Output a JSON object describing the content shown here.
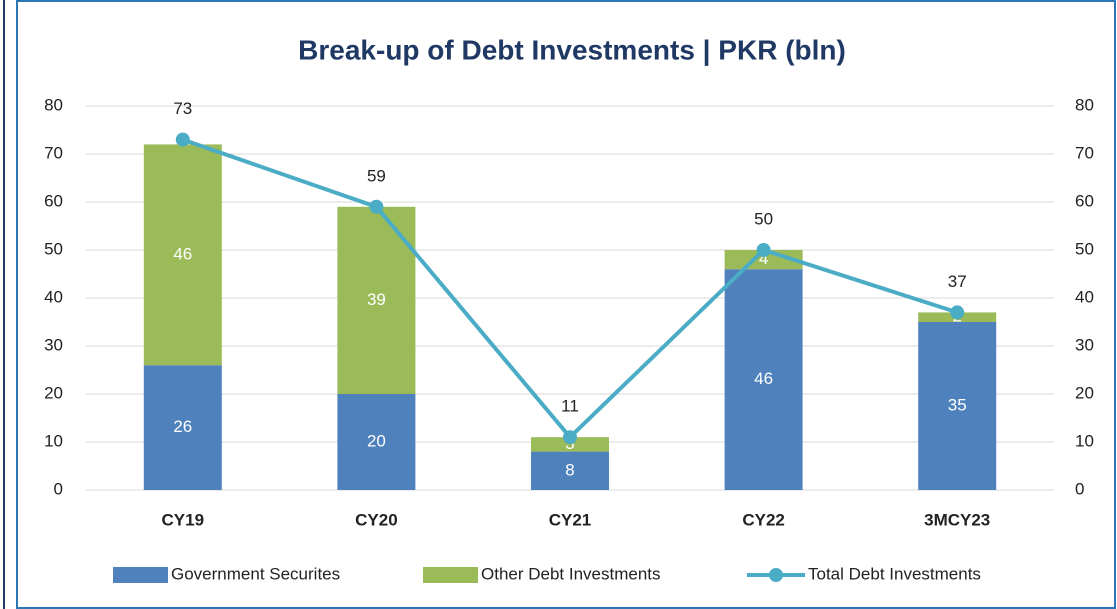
{
  "chart_data": {
    "type": "bar_line",
    "title": "Break-up of Debt Investments | PKR (bln)",
    "categories": [
      "CY19",
      "CY20",
      "CY21",
      "CY22",
      "3MCY23"
    ],
    "series": [
      {
        "name": "Government Securites",
        "type": "bar",
        "color": "#4f81bd",
        "values": [
          26,
          20,
          8,
          46,
          35
        ]
      },
      {
        "name": "Other Debt Investments",
        "type": "bar",
        "color": "#9bbb59",
        "values": [
          46,
          39,
          3,
          4,
          2
        ]
      },
      {
        "name": "Total Debt Investments",
        "type": "line",
        "axis": "y2",
        "color": "#4bacc6",
        "values": [
          73,
          59,
          11,
          50,
          37
        ]
      }
    ],
    "ylim": [
      0,
      80
    ],
    "yticks": [
      0,
      10,
      20,
      30,
      40,
      50,
      60,
      70,
      80
    ],
    "y2lim": [
      0,
      80
    ],
    "y2ticks": [
      0,
      10,
      20,
      30,
      40,
      50,
      60,
      70,
      80
    ],
    "grid": true,
    "stacked": true,
    "legend": "bottom"
  }
}
